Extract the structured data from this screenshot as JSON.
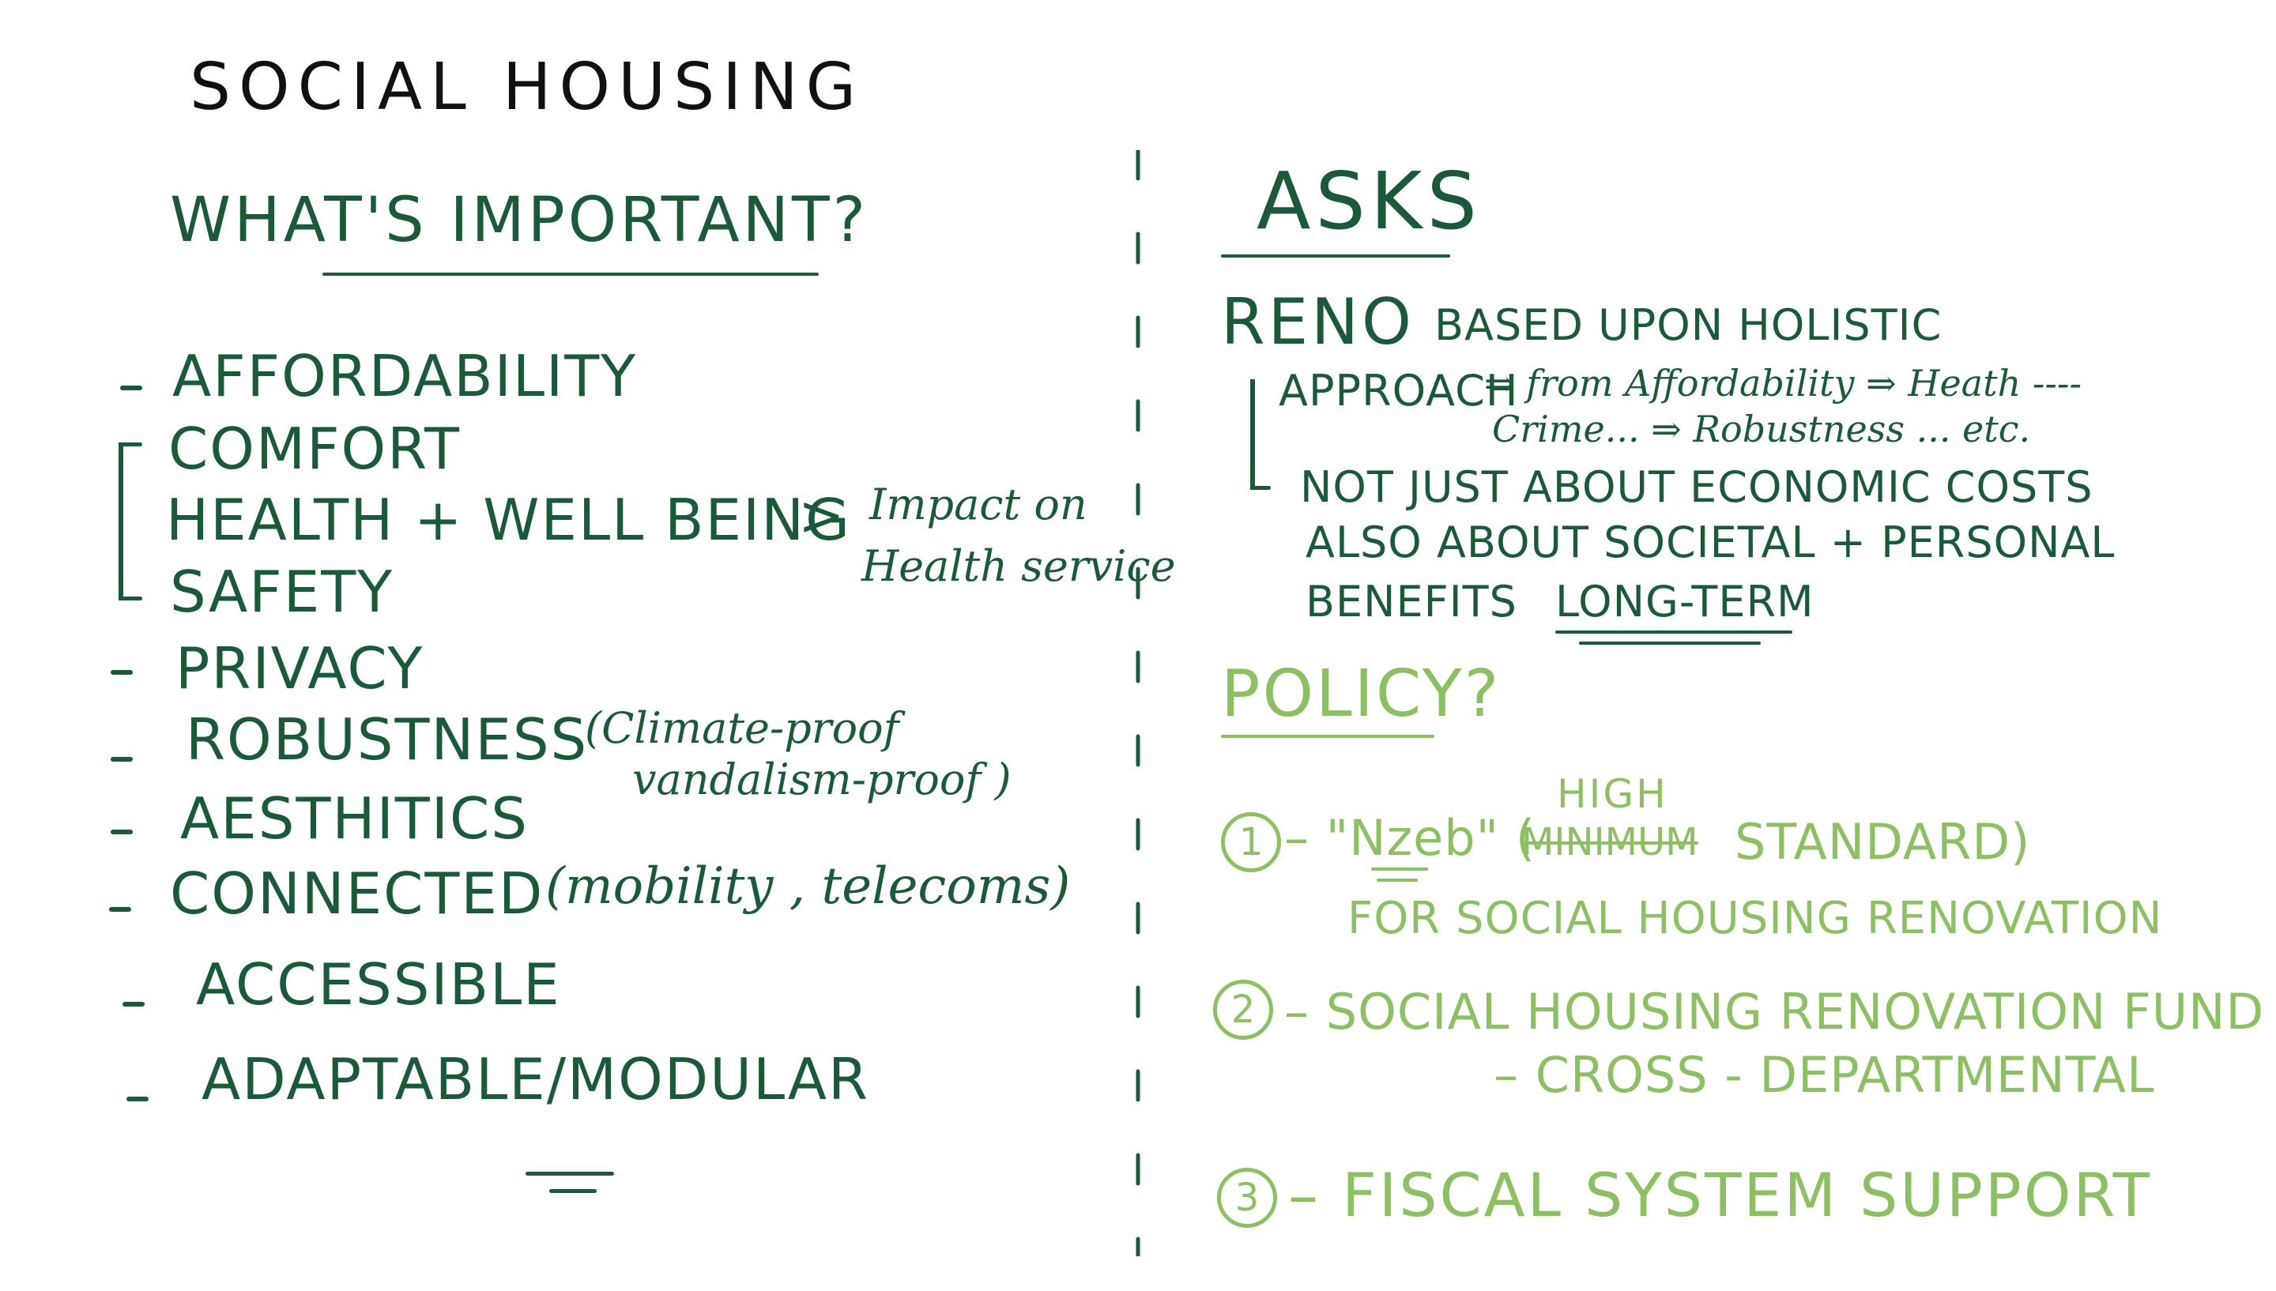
{
  "title": "SOCIAL HOUSING",
  "left": {
    "heading": "WHAT'S IMPORTANT?",
    "items": {
      "affordability": "AFFORDABILITY",
      "comfort": "COMFORT",
      "health": "HEALTH + WELL BEING",
      "safety": "SAFETY",
      "privacy": "PRIVACY",
      "robustness": "ROBUSTNESS",
      "robustness_note_1": "(Climate-proof",
      "robustness_note_2": "vandalism-proof )",
      "aesthetics": "AESTHITICS",
      "connected": "CONNECTED",
      "connected_note": "(mobility , telecoms)",
      "accessible": "ACCESSIBLE",
      "adaptable": "ADAPTABLE/MODULAR"
    },
    "impact_arrow": ">",
    "impact_1": "Impact on",
    "impact_2": "Health service"
  },
  "asks": {
    "heading": "ASKS",
    "reno": "RENO",
    "line1": "BASED UPON HOLISTIC",
    "approach": "APPROACH",
    "approach_chain_1": "⇒ from Affordability ⇒ Heath ----",
    "approach_chain_2": "Crime... ⇒ Robustness ... etc.",
    "line2": "NOT JUST ABOUT ECONOMIC COSTS",
    "line3": "ALSO ABOUT SOCIETAL + PERSONAL",
    "line4_a": "BENEFITS",
    "line4_b": "LONG-TERM"
  },
  "policy": {
    "heading": "POLICY?",
    "p1_num": "1",
    "p1_a": "– \"Nzeb\" (",
    "p1_strike": "MINIMUM",
    "p1_high": "HIGH",
    "p1_b": "STANDARD)",
    "p1_c": "FOR SOCIAL HOUSING RENOVATION",
    "p2_num": "2",
    "p2_a": "– SOCIAL HOUSING RENOVATION FUND",
    "p2_b": "– CROSS - DEPARTMENTAL",
    "p3_num": "3",
    "p3_a": "– FISCAL SYSTEM SUPPORT"
  },
  "colors": {
    "dark_green": "#1a5a38",
    "light_green": "#8cc063",
    "black": "#111111"
  }
}
